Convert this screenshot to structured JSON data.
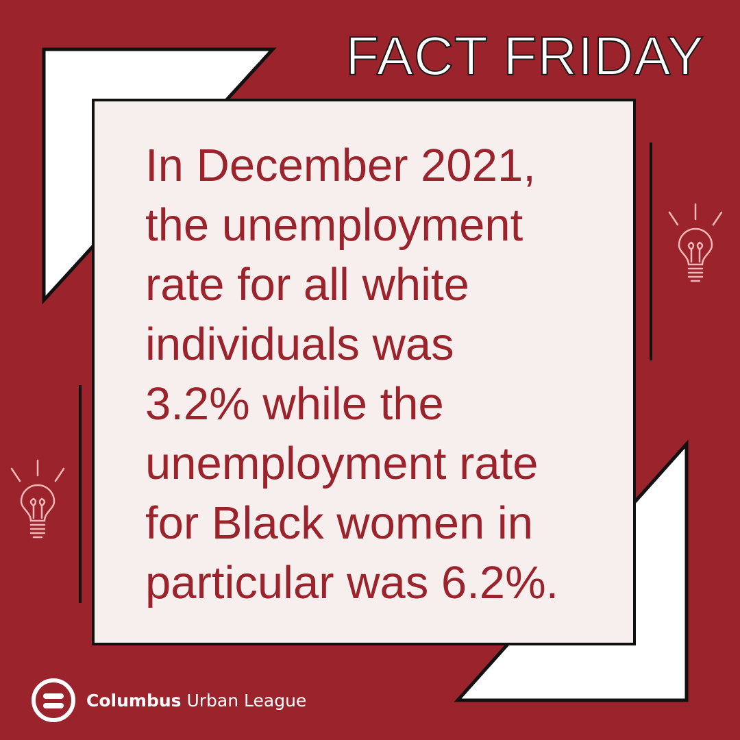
{
  "header": {
    "title": "FACT FRIDAY"
  },
  "fact": {
    "lines": [
      "In December 2021,",
      "the unemployment",
      "rate for all white",
      "individuals was",
      "3.2% while the",
      "unemployment rate",
      "for Black women in",
      "particular was 6.2%."
    ]
  },
  "footer": {
    "org_name_bold": "Columbus",
    "org_name_rest": " Urban League"
  },
  "colors": {
    "background": "#9b232c",
    "card": "#f7eeee",
    "text_accent": "#9b232c",
    "bulb_stroke": "#f2b8b8"
  },
  "icons": [
    "lightbulb-icon",
    "lightbulb-icon",
    "equal-sign-logo-icon"
  ]
}
